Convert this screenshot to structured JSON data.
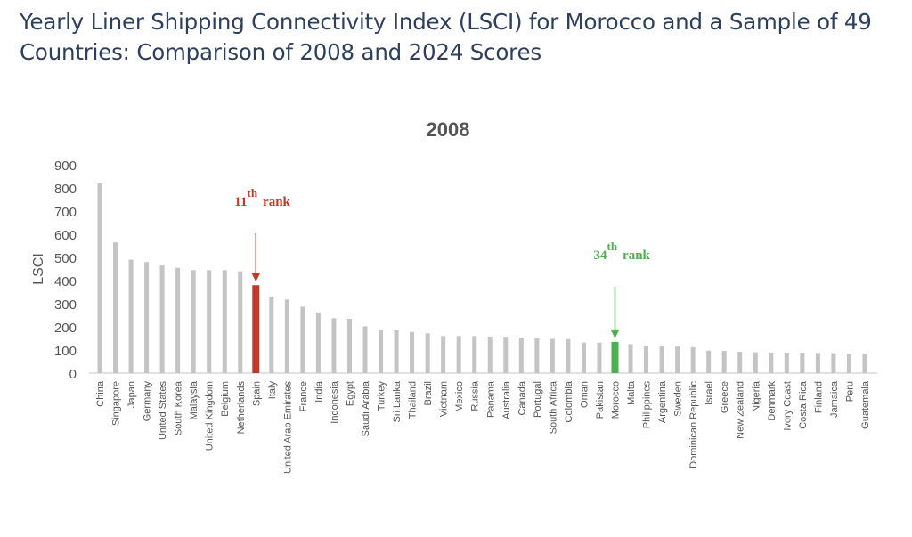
{
  "page": {
    "title": "Yearly Liner Shipping Connectivity Index (LSCI) for Morocco and a Sample of 49 Countries: Comparison of 2008 and 2024 Scores"
  },
  "chart_data": {
    "type": "bar",
    "title": "2008",
    "xlabel": "",
    "ylabel": "LSCI",
    "ylim": [
      0,
      900
    ],
    "yticks": [
      0,
      100,
      200,
      300,
      400,
      500,
      600,
      700,
      800,
      900
    ],
    "grid": false,
    "categories": [
      "China",
      "Singapore",
      "Japan",
      "Germany",
      "United States",
      "South Korea",
      "Malaysia",
      "United Kingdom",
      "Belgium",
      "Netherlands",
      "Spain",
      "Italy",
      "United Arab Emirates",
      "France",
      "India",
      "Indonesia",
      "Egypt",
      "Saudi Arabia",
      "Turkey",
      "Sri Lanka",
      "Thailand",
      "Brazil",
      "Vietnam",
      "Mexico",
      "Russia",
      "Panama",
      "Australia",
      "Canada",
      "Portugal",
      "South Africa",
      "Colombia",
      "Oman",
      "Pakistan",
      "Morocco",
      "Malta",
      "Philippines",
      "Argentina",
      "Sweden",
      "Dominican Republic",
      "Israel",
      "Greece",
      "New Zealand",
      "Nigeria",
      "Denmark",
      "Ivory Coast",
      "Costa Rica",
      "Finland",
      "Jamaica",
      "Peru",
      "Guatemala"
    ],
    "values": [
      820,
      565,
      490,
      480,
      465,
      455,
      445,
      445,
      445,
      440,
      380,
      330,
      318,
      287,
      262,
      237,
      235,
      202,
      187,
      185,
      178,
      172,
      160,
      160,
      160,
      158,
      157,
      153,
      150,
      148,
      147,
      132,
      132,
      135,
      125,
      117,
      116,
      115,
      112,
      97,
      96,
      92,
      90,
      89,
      88,
      88,
      87,
      86,
      82,
      81
    ],
    "colors": {
      "default": "#c4c4c4",
      "Spain": "#c0392b",
      "Morocco": "#4caf50",
      "axis_text": "#555555",
      "title": "#555555"
    },
    "annotations": [
      {
        "category": "Spain",
        "rank_number": "11",
        "rank_suffix": "th",
        "rank_word": "rank",
        "color": "#c0392b"
      },
      {
        "category": "Morocco",
        "rank_number": "34",
        "rank_suffix": "th",
        "rank_word": "rank",
        "color": "#4caf50"
      }
    ]
  }
}
